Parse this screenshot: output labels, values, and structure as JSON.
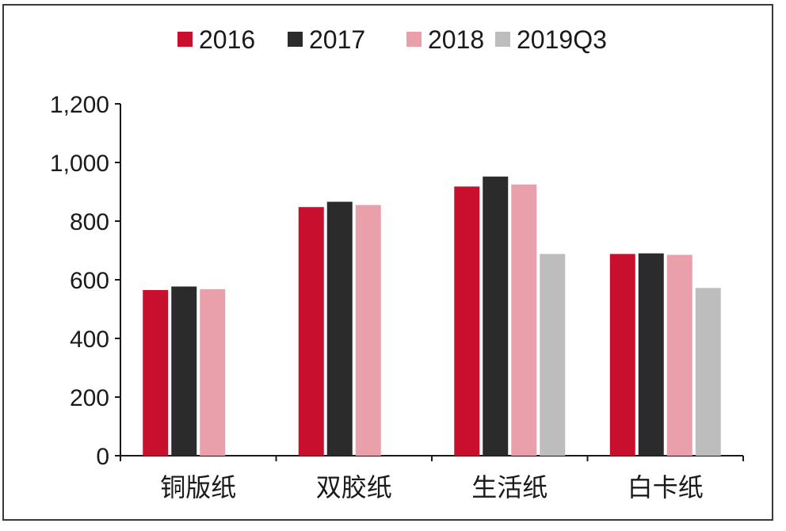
{
  "chart_data": {
    "type": "bar",
    "categories": [
      "铜版纸",
      "双胶纸",
      "生活纸",
      "白卡纸"
    ],
    "series": [
      {
        "name": "2016",
        "color": "#c8102e",
        "values": [
          565,
          848,
          918,
          688
        ]
      },
      {
        "name": "2017",
        "color": "#2b2b2b",
        "values": [
          577,
          866,
          952,
          690
        ]
      },
      {
        "name": "2018",
        "color": "#e9a0ab",
        "values": [
          568,
          855,
          925,
          685
        ]
      },
      {
        "name": "2019Q3",
        "color": "#bdbdbd",
        "values": [
          null,
          null,
          688,
          572
        ]
      }
    ],
    "y_ticks": [
      "0",
      "200",
      "400",
      "600",
      "800",
      "1,000",
      "1,200"
    ],
    "y_tick_values": [
      0,
      200,
      400,
      600,
      800,
      1000,
      1200
    ],
    "ylim": [
      0,
      1200
    ],
    "grid": false,
    "legend_position": "top"
  }
}
